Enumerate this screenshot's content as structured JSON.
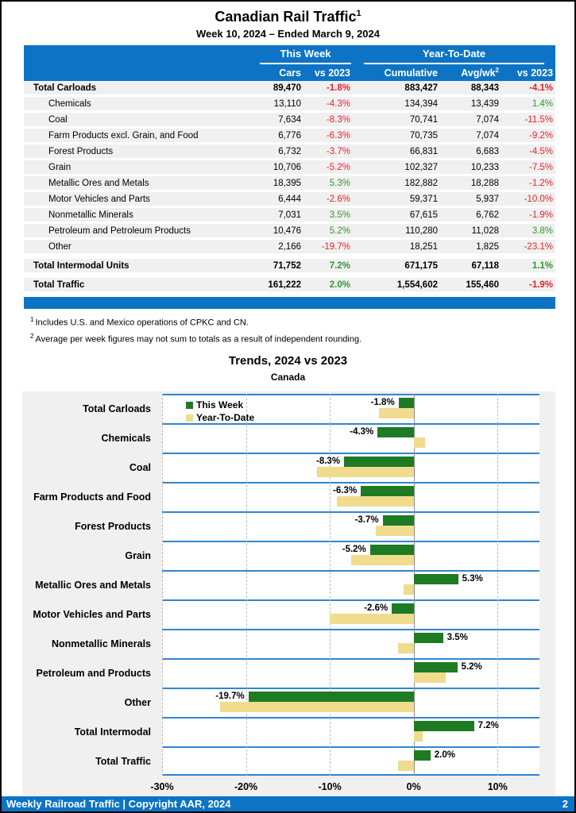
{
  "page": {
    "title": "Canadian Rail Traffic",
    "title_superscript": "1",
    "subtitle": "Week 10, 2024 – Ended March 9, 2024",
    "footer": {
      "left": "Weekly Railroad Traffic | Copyright AAR, 2024",
      "page_number": "2"
    }
  },
  "colors": {
    "header_blue": "#0d74c5",
    "chart_line_blue": "#2e86d0",
    "negative_red": "#e8212a",
    "positive_green": "#2e9633",
    "bar_green": "#1e7b24",
    "bar_tan": "#f0db8e",
    "row_gray": "#f0f0f0"
  },
  "table": {
    "group_headers": {
      "this_week": "This Week",
      "ytd": "Year-To-Date"
    },
    "columns": {
      "cars": "Cars",
      "cars_vs": "vs 2023",
      "cumulative": "Cumulative",
      "avg_wk": "Avg/wk",
      "avg_wk_superscript": "2",
      "ytd_vs": "vs 2023"
    },
    "rows": [
      {
        "label": "Total Carloads",
        "total": true,
        "gap": false,
        "cars": "89,470",
        "cars_vs": "-1.8%",
        "cumulative": "883,427",
        "avg_wk": "88,343",
        "ytd_vs": "-4.1%"
      },
      {
        "label": "Chemicals",
        "total": false,
        "gap": false,
        "cars": "13,110",
        "cars_vs": "-4.3%",
        "cumulative": "134,394",
        "avg_wk": "13,439",
        "ytd_vs": "1.4%"
      },
      {
        "label": "Coal",
        "total": false,
        "gap": false,
        "cars": "7,634",
        "cars_vs": "-8.3%",
        "cumulative": "70,741",
        "avg_wk": "7,074",
        "ytd_vs": "-11.5%"
      },
      {
        "label": "Farm Products excl. Grain, and Food",
        "total": false,
        "gap": false,
        "cars": "6,776",
        "cars_vs": "-6.3%",
        "cumulative": "70,735",
        "avg_wk": "7,074",
        "ytd_vs": "-9.2%"
      },
      {
        "label": "Forest Products",
        "total": false,
        "gap": false,
        "cars": "6,732",
        "cars_vs": "-3.7%",
        "cumulative": "66,831",
        "avg_wk": "6,683",
        "ytd_vs": "-4.5%"
      },
      {
        "label": "Grain",
        "total": false,
        "gap": false,
        "cars": "10,706",
        "cars_vs": "-5.2%",
        "cumulative": "102,327",
        "avg_wk": "10,233",
        "ytd_vs": "-7.5%"
      },
      {
        "label": "Metallic Ores and Metals",
        "total": false,
        "gap": false,
        "cars": "18,395",
        "cars_vs": "5.3%",
        "cumulative": "182,882",
        "avg_wk": "18,288",
        "ytd_vs": "-1.2%"
      },
      {
        "label": "Motor Vehicles and Parts",
        "total": false,
        "gap": false,
        "cars": "6,444",
        "cars_vs": "-2.6%",
        "cumulative": "59,371",
        "avg_wk": "5,937",
        "ytd_vs": "-10.0%"
      },
      {
        "label": "Nonmetallic Minerals",
        "total": false,
        "gap": false,
        "cars": "7,031",
        "cars_vs": "3.5%",
        "cumulative": "67,615",
        "avg_wk": "6,762",
        "ytd_vs": "-1.9%"
      },
      {
        "label": "Petroleum and Petroleum Products",
        "total": false,
        "gap": false,
        "cars": "10,476",
        "cars_vs": "5.2%",
        "cumulative": "110,280",
        "avg_wk": "11,028",
        "ytd_vs": "3.8%"
      },
      {
        "label": "Other",
        "total": false,
        "gap": false,
        "cars": "2,166",
        "cars_vs": "-19.7%",
        "cumulative": "18,251",
        "avg_wk": "1,825",
        "ytd_vs": "-23.1%"
      },
      {
        "label": "Total Intermodal Units",
        "total": true,
        "gap": true,
        "cars": "71,752",
        "cars_vs": "7.2%",
        "cumulative": "671,175",
        "avg_wk": "67,118",
        "ytd_vs": "1.1%"
      },
      {
        "label": "Total Traffic",
        "total": true,
        "gap": true,
        "cars": "161,222",
        "cars_vs": "2.0%",
        "cumulative": "1,554,602",
        "avg_wk": "155,460",
        "ytd_vs": "-1.9%"
      }
    ]
  },
  "footnotes": [
    {
      "marker": "1",
      "text": "Includes U.S. and Mexico operations of CPKC and CN."
    },
    {
      "marker": "2",
      "text": "Average per week figures may not sum to totals as a result of independent rounding."
    }
  ],
  "chart_data": {
    "type": "bar",
    "orientation": "horizontal",
    "title": "Trends, 2024 vs 2023",
    "subtitle": "Canada",
    "categories": [
      "Total Carloads",
      "Chemicals",
      "Coal",
      "Farm Products and Food",
      "Forest Products",
      "Grain",
      "Metallic Ores and Metals",
      "Motor Vehicles and Parts",
      "Nonmetallic Minerals",
      "Petroleum and Products",
      "Other",
      "Total Intermodal",
      "Total Traffic"
    ],
    "series": [
      {
        "name": "This Week",
        "color": "#1e7b24",
        "values": [
          -1.8,
          -4.3,
          -8.3,
          -6.3,
          -3.7,
          -5.2,
          5.3,
          -2.6,
          3.5,
          5.2,
          -19.7,
          7.2,
          2.0
        ]
      },
      {
        "name": "Year-To-Date",
        "color": "#f0db8e",
        "values": [
          -4.1,
          1.4,
          -11.5,
          -9.2,
          -4.5,
          -7.5,
          -1.2,
          -10.0,
          -1.9,
          3.8,
          -23.1,
          1.1,
          -1.9
        ]
      }
    ],
    "bar_labels": [
      "-1.8%",
      "-4.3%",
      "-8.3%",
      "-6.3%",
      "-3.7%",
      "-5.2%",
      "5.3%",
      "-2.6%",
      "3.5%",
      "5.2%",
      "-19.7%",
      "7.2%",
      "2.0%"
    ],
    "xlim": [
      -30,
      15
    ],
    "x_tick_values": [
      -30,
      -20,
      -10,
      0,
      10
    ],
    "x_ticks": [
      "-30%",
      "-20%",
      "-10%",
      "0%",
      "10%"
    ],
    "legend_position": "top-left",
    "grid": "dashed-vertical"
  }
}
